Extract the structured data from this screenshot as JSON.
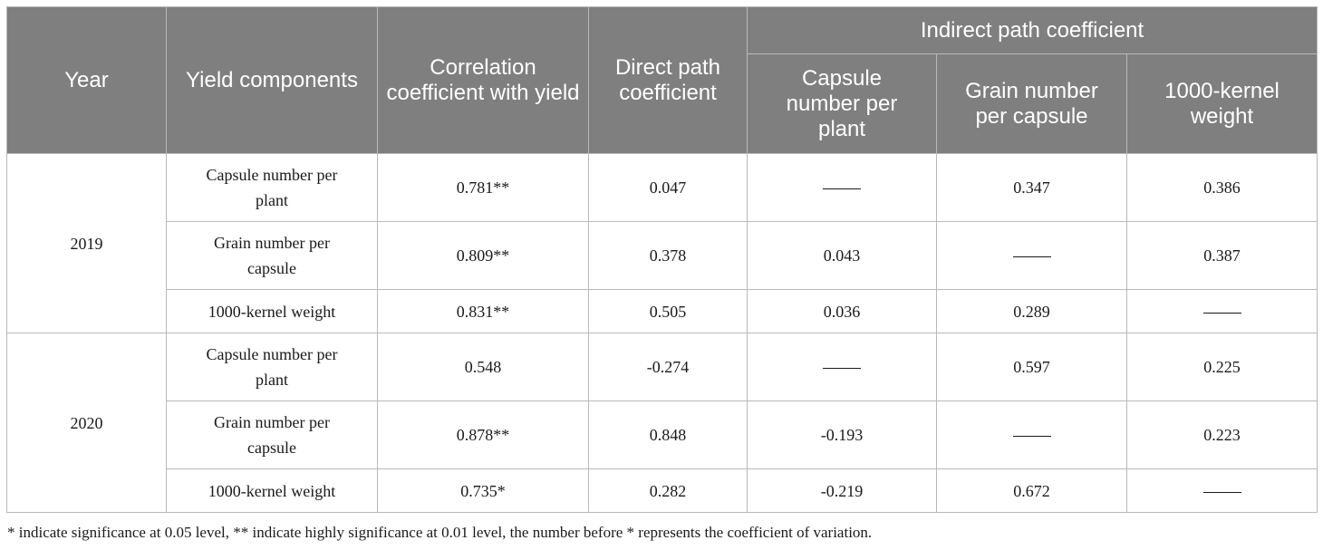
{
  "table": {
    "headers": {
      "year": "Year",
      "yield_components": "Yield components",
      "correlation": "Correlation coefficient with yield",
      "direct": "Direct path coefficient",
      "indirect": "Indirect path coefficient",
      "capsule_number": "Capsule number per plant",
      "grain_number": "Grain number per capsule",
      "kernel_weight": "1000-kernel weight"
    },
    "groups": [
      {
        "year": "2019",
        "rows": [
          {
            "component": "Capsule number per plant",
            "correlation": "0.781**",
            "direct": "0.047",
            "capsule": "——",
            "grain": "0.347",
            "kernel": "0.386"
          },
          {
            "component": "Grain number per capsule",
            "correlation": "0.809**",
            "direct": "0.378",
            "capsule": "0.043",
            "grain": "——",
            "kernel": "0.387"
          },
          {
            "component": "1000-kernel weight",
            "correlation": "0.831**",
            "direct": "0.505",
            "capsule": "0.036",
            "grain": "0.289",
            "kernel": "——"
          }
        ]
      },
      {
        "year": "2020",
        "rows": [
          {
            "component": "Capsule number per plant",
            "correlation": "0.548",
            "direct": "-0.274",
            "capsule": "——",
            "grain": "0.597",
            "kernel": "0.225"
          },
          {
            "component": "Grain number per capsule",
            "correlation": "0.878**",
            "direct": "0.848",
            "capsule": "-0.193",
            "grain": "——",
            "kernel": "0.223"
          },
          {
            "component": "1000-kernel weight",
            "correlation": "0.735*",
            "direct": "0.282",
            "capsule": "-0.219",
            "grain": "0.672",
            "kernel": "——"
          }
        ]
      }
    ]
  },
  "footnote": "* indicate significance at 0.05 level, ** indicate highly significance at 0.01 level, the number before * represents the coefficient of variation."
}
